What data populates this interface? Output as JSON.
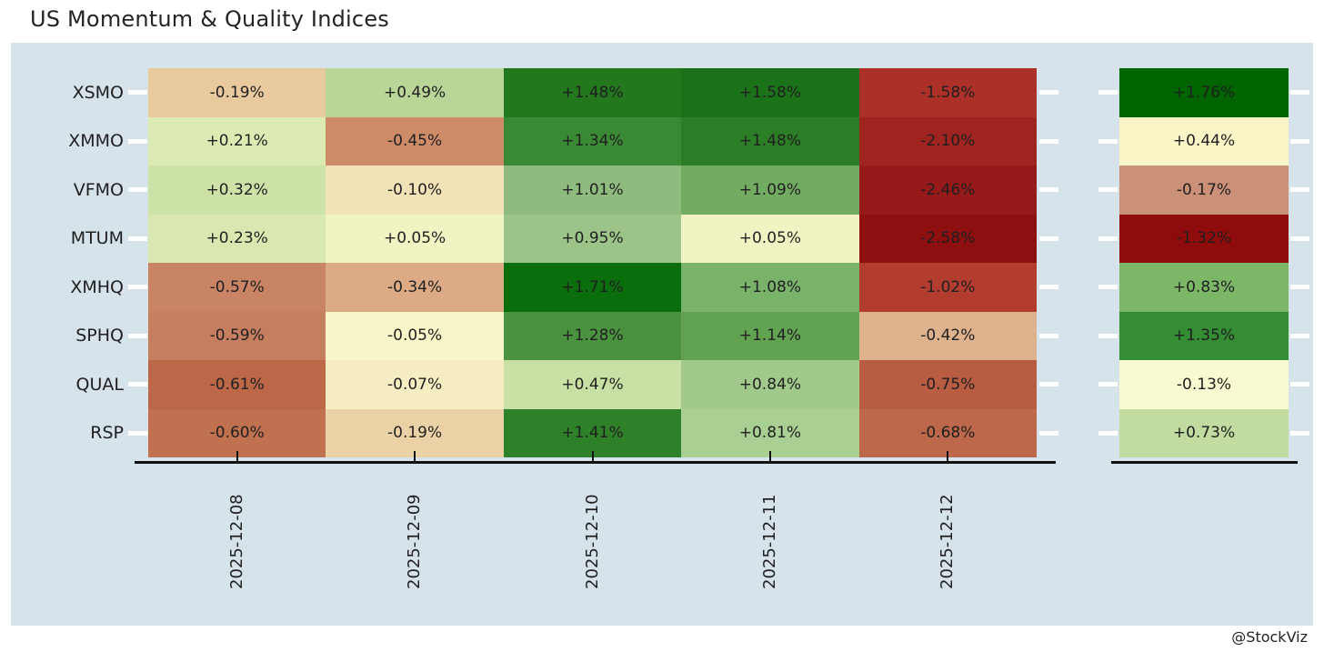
{
  "title": "US Momentum & Quality Indices",
  "attribution": "@StockViz",
  "colors": {
    "page_background": "#ffffff",
    "panel_background": "#d6e3ea",
    "text": "#1f1f1f",
    "axis": "#111111",
    "tick_dash": "#ffffff"
  },
  "chart_data": {
    "type": "heatmap",
    "title": "US Momentum & Quality Indices",
    "value_format": "percent",
    "rows": [
      "XSMO",
      "XMMO",
      "VFMO",
      "MTUM",
      "XMHQ",
      "SPHQ",
      "QUAL",
      "RSP"
    ],
    "columns": [
      "2025-12-08",
      "2025-12-09",
      "2025-12-10",
      "2025-12-11",
      "2025-12-12"
    ],
    "series": [
      {
        "name": "XSMO",
        "values": [
          -0.19,
          0.49,
          1.48,
          1.58,
          -1.58
        ],
        "labels": [
          "-0.19%",
          "+0.49%",
          "+1.48%",
          "+1.58%",
          "-1.58%"
        ],
        "colors": [
          "#e9c99e",
          "#b9d597",
          "#23781e",
          "#1b7319",
          "#ac3028"
        ],
        "total": 1.76,
        "total_label": "+1.76%",
        "total_color": "#006400"
      },
      {
        "name": "XMMO",
        "values": [
          0.21,
          -0.45,
          1.34,
          1.48,
          -2.1
        ],
        "labels": [
          "+0.21%",
          "-0.45%",
          "+1.34%",
          "+1.48%",
          "-2.10%"
        ],
        "colors": [
          "#dcebb3",
          "#cd8b68",
          "#3a8a35",
          "#2b7d26",
          "#9f2420"
        ],
        "total": 0.44,
        "total_label": "+0.44%",
        "total_color": "#faf5c6"
      },
      {
        "name": "VFMO",
        "values": [
          0.32,
          -0.1,
          1.01,
          1.09,
          -2.46
        ],
        "labels": [
          "+0.32%",
          "-0.10%",
          "+1.01%",
          "+1.09%",
          "-2.46%"
        ],
        "colors": [
          "#cde2a7",
          "#f2e2b8",
          "#8fbc7e",
          "#72ac62",
          "#951a19"
        ],
        "total": -0.17,
        "total_label": "-0.17%",
        "total_color": "#cb9078"
      },
      {
        "name": "MTUM",
        "values": [
          0.23,
          0.05,
          0.95,
          0.05,
          -2.58
        ],
        "labels": [
          "+0.23%",
          "+0.05%",
          "+0.95%",
          "+0.05%",
          "-2.58%"
        ],
        "colors": [
          "#d8e8b0",
          "#f2f3c3",
          "#9cc489",
          "#f2f3c3",
          "#8d0f10"
        ],
        "total": -1.32,
        "total_label": "-1.32%",
        "total_color": "#8f0c0c"
      },
      {
        "name": "XMHQ",
        "values": [
          -0.57,
          -0.34,
          1.71,
          1.08,
          -1.02
        ],
        "labels": [
          "-0.57%",
          "-0.34%",
          "+1.71%",
          "+1.08%",
          "-1.02%"
        ],
        "colors": [
          "#c98465",
          "#dcab85",
          "#0a6e0c",
          "#79b269",
          "#b23c2e"
        ],
        "total": 0.83,
        "total_label": "+0.83%",
        "total_color": "#7cb768"
      },
      {
        "name": "SPHQ",
        "values": [
          -0.59,
          -0.05,
          1.28,
          1.14,
          -0.42
        ],
        "labels": [
          "-0.59%",
          "-0.05%",
          "+1.28%",
          "+1.14%",
          "-0.42%"
        ],
        "colors": [
          "#c67e60",
          "#f8f5c8",
          "#4a9240",
          "#62a352",
          "#dfb28e"
        ],
        "total": 1.35,
        "total_label": "+1.35%",
        "total_color": "#348c33"
      },
      {
        "name": "QUAL",
        "values": [
          -0.61,
          -0.07,
          0.47,
          0.84,
          -0.75
        ],
        "labels": [
          "-0.61%",
          "-0.07%",
          "+0.47%",
          "+0.84%",
          "-0.75%"
        ],
        "colors": [
          "#bb6748",
          "#f6edc3",
          "#c9e0a4",
          "#a0c98b",
          "#b85c42"
        ],
        "total": -0.13,
        "total_label": "-0.13%",
        "total_color": "#fafad2"
      },
      {
        "name": "RSP",
        "values": [
          -0.6,
          -0.19,
          1.41,
          0.81,
          -0.68
        ],
        "labels": [
          "-0.60%",
          "-0.19%",
          "+1.41%",
          "+0.81%",
          "-0.68%"
        ],
        "colors": [
          "#c0714f",
          "#ebd2a6",
          "#2e8129",
          "#a9cf92",
          "#bd674b"
        ],
        "total": 0.73,
        "total_label": "+0.73%",
        "total_color": "#c2dba0"
      }
    ],
    "layout_hints": {
      "x_tick_label_rotation_deg": 90,
      "row_labels_side": "left",
      "separate_totals_column": true,
      "totals_column_has_own_color_scale": true,
      "grid": false,
      "legend": "none"
    }
  }
}
